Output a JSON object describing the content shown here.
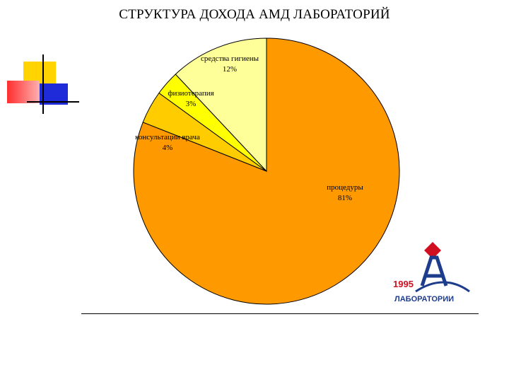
{
  "title": "СТРУКТУРА ДОХОДА АМД ЛАБОРАТОРИЙ",
  "chart_data": {
    "type": "pie",
    "slices": [
      {
        "label": "процедуры",
        "percent": 81,
        "value_label": "81%",
        "color": "#FF9900"
      },
      {
        "label": "консультации врача",
        "percent": 4,
        "value_label": "4%",
        "color": "#FFCC00"
      },
      {
        "label": "физиотерапия",
        "percent": 3,
        "value_label": "3%",
        "color": "#FFFF00"
      },
      {
        "label": "средства гигиены",
        "percent": 12,
        "value_label": "12%",
        "color": "#FFFF99"
      }
    ]
  },
  "logo": {
    "year": "1995",
    "text": "ЛАБОРАТОРИИ",
    "mark": "АМД",
    "colors": {
      "red": "#D01020",
      "blue": "#1E3C8C"
    }
  },
  "decoration": {
    "colors": {
      "yellow": "#FFD400",
      "red": "#FF3B3B",
      "blue": "#1F2BD8"
    }
  }
}
